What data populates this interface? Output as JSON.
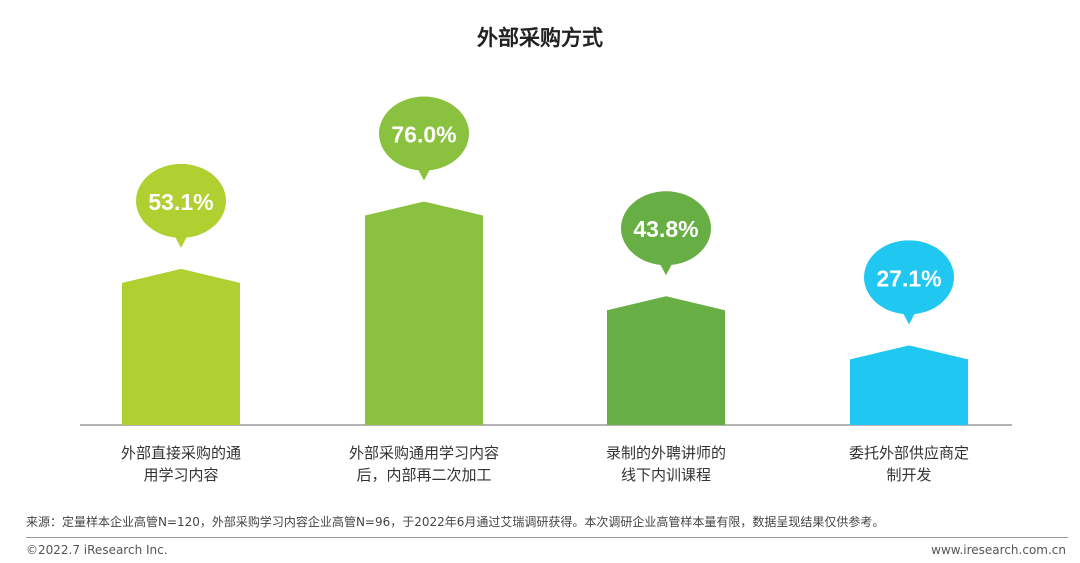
{
  "title": "外部采购方式",
  "chart_data": {
    "type": "bar",
    "categories": [
      [
        "外部直接采购的通",
        "用学习内容"
      ],
      [
        "外部采购通用学习内容",
        "后，内部再二次加工"
      ],
      [
        "录制的外聘讲师的",
        "线下内训课程"
      ],
      [
        "委托外部供应商定",
        "制开发"
      ]
    ],
    "values": [
      53.1,
      76.0,
      43.8,
      27.1
    ],
    "data_labels": [
      "53.1%",
      "76.0%",
      "43.8%",
      "27.1%"
    ],
    "colors": [
      "#b0cf31",
      "#8ac23f",
      "#67ae44",
      "#20c7f0"
    ],
    "ylim": [
      0,
      100
    ],
    "grid": false,
    "legend": "none"
  },
  "source_note": "来源：定量样本企业高管N=120，外部采购学习内容企业高管N=96，于2022年6月通过艾瑞调研获得。本次调研企业高管样本量有限，数据呈现结果仅供参考。",
  "footer": {
    "copyright": "©2022.7 iResearch Inc.",
    "website": "www.iresearch.com.cn"
  }
}
